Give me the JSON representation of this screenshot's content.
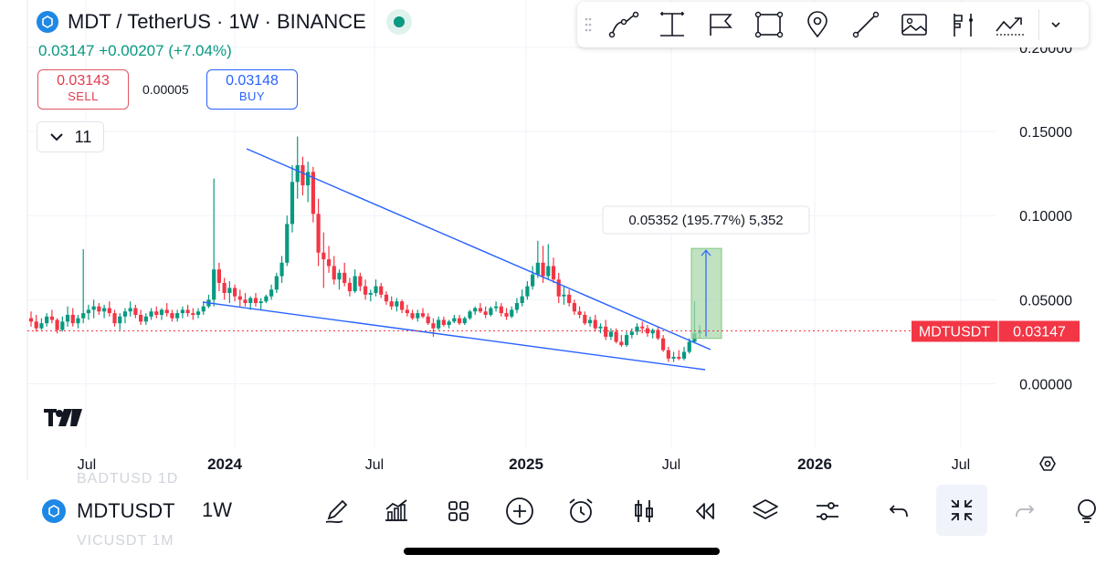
{
  "header": {
    "title": "MDT / TetherUS · 1W · BINANCE",
    "last": "0.03147",
    "change": "+0.00207 (+7.04%)"
  },
  "trade": {
    "sell_price": "0.03143",
    "sell_label": "SELL",
    "spread": "0.00005",
    "buy_price": "0.03148",
    "buy_label": "BUY"
  },
  "indicators": {
    "count": "11"
  },
  "drawing_toolbar": {
    "tools": [
      "path-icon",
      "text-tool-icon",
      "flag-icon",
      "rectangle-icon",
      "pin-icon",
      "trend-line-icon",
      "image-icon",
      "long-position-icon",
      "forecast-icon",
      "chevron-down-icon"
    ]
  },
  "price_axis": {
    "labels": [
      "0.20000",
      "0.15000",
      "0.10000",
      "0.05000",
      "0.00000"
    ],
    "current_symbol": "MDTUSDT",
    "current_price": "0.03147"
  },
  "time_axis": {
    "labels": [
      "Jul",
      "2024",
      "Jul",
      "2025",
      "Jul",
      "2026",
      "Jul"
    ]
  },
  "measure": {
    "label": "0.05352 (195.77%) 5,352"
  },
  "bottom_toolbar": {
    "symbol": "MDTUSDT",
    "interval": "1W",
    "ghost_above": "BADTUSD   1D",
    "ghost_below": "VICUSDT   1M",
    "tools": [
      "pencil-icon",
      "indicators-icon",
      "layouts-icon",
      "add-icon",
      "alarm-icon",
      "candles-icon",
      "replay-icon",
      "layers-icon",
      "settings-icon",
      "undo-icon",
      "exit-fullscreen-icon",
      "redo-icon",
      "more-icon"
    ]
  },
  "colors": {
    "up": "#089981",
    "down": "#f23645",
    "line": "#2962ff",
    "measure": "#a5d6a7"
  },
  "chart_data": {
    "type": "candlestick",
    "pair": "MDTUSDT",
    "timeframe": "1W",
    "price_range": [
      0,
      0.2
    ],
    "current_price": 0.03147,
    "trendlines": [
      {
        "name": "upper",
        "from": {
          "time": "2024-02",
          "price": 0.139
        },
        "to": {
          "time": "2025-08",
          "price": 0.02
        }
      },
      {
        "name": "lower",
        "from": {
          "time": "2023-12",
          "price": 0.048
        },
        "to": {
          "time": "2025-08",
          "price": 0.008
        }
      }
    ],
    "measure": {
      "from": 0.027,
      "to": 0.0805,
      "change": "0.05352 (195.77%) 5,352"
    },
    "candles": [
      [
        0.039,
        0.043,
        0.034,
        0.037
      ],
      [
        0.037,
        0.041,
        0.031,
        0.033
      ],
      [
        0.033,
        0.039,
        0.032,
        0.036
      ],
      [
        0.036,
        0.042,
        0.034,
        0.04
      ],
      [
        0.04,
        0.044,
        0.036,
        0.038
      ],
      [
        0.038,
        0.039,
        0.03,
        0.032
      ],
      [
        0.032,
        0.04,
        0.031,
        0.037
      ],
      [
        0.037,
        0.046,
        0.034,
        0.041
      ],
      [
        0.041,
        0.045,
        0.034,
        0.036
      ],
      [
        0.036,
        0.041,
        0.033,
        0.039
      ],
      [
        0.039,
        0.08,
        0.036,
        0.042
      ],
      [
        0.042,
        0.047,
        0.038,
        0.044
      ],
      [
        0.044,
        0.05,
        0.039,
        0.046
      ],
      [
        0.046,
        0.048,
        0.041,
        0.043
      ],
      [
        0.043,
        0.047,
        0.039,
        0.045
      ],
      [
        0.045,
        0.049,
        0.04,
        0.042
      ],
      [
        0.042,
        0.044,
        0.034,
        0.036
      ],
      [
        0.036,
        0.042,
        0.032,
        0.04
      ],
      [
        0.04,
        0.045,
        0.036,
        0.043
      ],
      [
        0.043,
        0.049,
        0.04,
        0.045
      ],
      [
        0.045,
        0.047,
        0.039,
        0.041
      ],
      [
        0.041,
        0.044,
        0.035,
        0.037
      ],
      [
        0.037,
        0.042,
        0.035,
        0.04
      ],
      [
        0.04,
        0.045,
        0.038,
        0.043
      ],
      [
        0.043,
        0.046,
        0.039,
        0.041
      ],
      [
        0.041,
        0.045,
        0.038,
        0.044
      ],
      [
        0.044,
        0.048,
        0.04,
        0.042
      ],
      [
        0.042,
        0.044,
        0.037,
        0.039
      ],
      [
        0.039,
        0.044,
        0.037,
        0.042
      ],
      [
        0.042,
        0.046,
        0.039,
        0.044
      ],
      [
        0.044,
        0.047,
        0.04,
        0.042
      ],
      [
        0.042,
        0.045,
        0.038,
        0.041
      ],
      [
        0.041,
        0.045,
        0.039,
        0.043
      ],
      [
        0.043,
        0.049,
        0.041,
        0.046
      ],
      [
        0.046,
        0.053,
        0.045,
        0.05
      ],
      [
        0.05,
        0.122,
        0.046,
        0.068
      ],
      [
        0.068,
        0.072,
        0.055,
        0.06
      ],
      [
        0.06,
        0.063,
        0.05,
        0.054
      ],
      [
        0.054,
        0.061,
        0.048,
        0.057
      ],
      [
        0.057,
        0.059,
        0.049,
        0.052
      ],
      [
        0.052,
        0.056,
        0.046,
        0.05
      ],
      [
        0.05,
        0.054,
        0.046,
        0.048
      ],
      [
        0.048,
        0.052,
        0.044,
        0.051
      ],
      [
        0.051,
        0.054,
        0.046,
        0.048
      ],
      [
        0.048,
        0.051,
        0.044,
        0.049
      ],
      [
        0.049,
        0.053,
        0.048,
        0.052
      ],
      [
        0.052,
        0.059,
        0.05,
        0.056
      ],
      [
        0.056,
        0.066,
        0.054,
        0.064
      ],
      [
        0.064,
        0.076,
        0.06,
        0.072
      ],
      [
        0.072,
        0.1,
        0.07,
        0.095
      ],
      [
        0.095,
        0.13,
        0.09,
        0.12
      ],
      [
        0.12,
        0.147,
        0.11,
        0.13
      ],
      [
        0.13,
        0.135,
        0.112,
        0.118
      ],
      [
        0.118,
        0.132,
        0.108,
        0.126
      ],
      [
        0.126,
        0.129,
        0.096,
        0.101
      ],
      [
        0.101,
        0.11,
        0.07,
        0.078
      ],
      [
        0.078,
        0.09,
        0.057,
        0.074
      ],
      [
        0.074,
        0.082,
        0.066,
        0.07
      ],
      [
        0.07,
        0.076,
        0.059,
        0.062
      ],
      [
        0.062,
        0.068,
        0.056,
        0.066
      ],
      [
        0.066,
        0.072,
        0.058,
        0.06
      ],
      [
        0.06,
        0.063,
        0.052,
        0.055
      ],
      [
        0.055,
        0.068,
        0.054,
        0.064
      ],
      [
        0.064,
        0.066,
        0.055,
        0.058
      ],
      [
        0.058,
        0.062,
        0.05,
        0.053
      ],
      [
        0.053,
        0.056,
        0.049,
        0.054
      ],
      [
        0.054,
        0.062,
        0.052,
        0.058
      ],
      [
        0.058,
        0.06,
        0.051,
        0.053
      ],
      [
        0.053,
        0.055,
        0.047,
        0.049
      ],
      [
        0.049,
        0.052,
        0.044,
        0.046
      ],
      [
        0.046,
        0.051,
        0.043,
        0.049
      ],
      [
        0.049,
        0.05,
        0.042,
        0.044
      ],
      [
        0.044,
        0.047,
        0.04,
        0.042
      ],
      [
        0.042,
        0.044,
        0.038,
        0.039
      ],
      [
        0.039,
        0.044,
        0.037,
        0.042
      ],
      [
        0.042,
        0.045,
        0.039,
        0.04
      ],
      [
        0.04,
        0.042,
        0.035,
        0.036
      ],
      [
        0.036,
        0.039,
        0.028,
        0.033
      ],
      [
        0.033,
        0.04,
        0.032,
        0.038
      ],
      [
        0.038,
        0.04,
        0.034,
        0.035
      ],
      [
        0.035,
        0.038,
        0.033,
        0.037
      ],
      [
        0.037,
        0.041,
        0.036,
        0.039
      ],
      [
        0.039,
        0.041,
        0.035,
        0.036
      ],
      [
        0.036,
        0.04,
        0.035,
        0.039
      ],
      [
        0.039,
        0.044,
        0.038,
        0.043
      ],
      [
        0.043,
        0.046,
        0.041,
        0.045
      ],
      [
        0.045,
        0.048,
        0.042,
        0.043
      ],
      [
        0.043,
        0.046,
        0.039,
        0.041
      ],
      [
        0.041,
        0.046,
        0.04,
        0.045
      ],
      [
        0.045,
        0.049,
        0.043,
        0.046
      ],
      [
        0.046,
        0.048,
        0.04,
        0.042
      ],
      [
        0.042,
        0.045,
        0.038,
        0.04
      ],
      [
        0.04,
        0.046,
        0.039,
        0.044
      ],
      [
        0.044,
        0.051,
        0.042,
        0.048
      ],
      [
        0.048,
        0.056,
        0.046,
        0.052
      ],
      [
        0.052,
        0.061,
        0.05,
        0.058
      ],
      [
        0.058,
        0.07,
        0.056,
        0.065
      ],
      [
        0.065,
        0.085,
        0.063,
        0.072
      ],
      [
        0.072,
        0.082,
        0.06,
        0.064
      ],
      [
        0.064,
        0.083,
        0.062,
        0.07
      ],
      [
        0.07,
        0.075,
        0.06,
        0.062
      ],
      [
        0.062,
        0.066,
        0.048,
        0.052
      ],
      [
        0.052,
        0.058,
        0.047,
        0.053
      ],
      [
        0.053,
        0.056,
        0.046,
        0.048
      ],
      [
        0.048,
        0.05,
        0.041,
        0.043
      ],
      [
        0.043,
        0.046,
        0.039,
        0.041
      ],
      [
        0.041,
        0.043,
        0.035,
        0.036
      ],
      [
        0.036,
        0.04,
        0.034,
        0.038
      ],
      [
        0.038,
        0.041,
        0.031,
        0.033
      ],
      [
        0.033,
        0.036,
        0.03,
        0.034
      ],
      [
        0.034,
        0.038,
        0.026,
        0.028
      ],
      [
        0.028,
        0.033,
        0.026,
        0.031
      ],
      [
        0.031,
        0.033,
        0.024,
        0.025
      ],
      [
        0.025,
        0.029,
        0.022,
        0.023
      ],
      [
        0.023,
        0.031,
        0.022,
        0.029
      ],
      [
        0.029,
        0.033,
        0.027,
        0.031
      ],
      [
        0.031,
        0.036,
        0.029,
        0.034
      ],
      [
        0.034,
        0.037,
        0.03,
        0.033
      ],
      [
        0.033,
        0.035,
        0.028,
        0.03
      ],
      [
        0.03,
        0.033,
        0.027,
        0.032
      ],
      [
        0.032,
        0.034,
        0.026,
        0.027
      ],
      [
        0.027,
        0.029,
        0.019,
        0.02
      ],
      [
        0.02,
        0.022,
        0.013,
        0.015
      ],
      [
        0.015,
        0.019,
        0.013,
        0.016
      ],
      [
        0.016,
        0.02,
        0.014,
        0.015
      ],
      [
        0.015,
        0.022,
        0.014,
        0.019
      ],
      [
        0.019,
        0.027,
        0.018,
        0.025
      ],
      [
        0.025,
        0.049,
        0.024,
        0.03
      ],
      [
        0.03,
        0.035,
        0.027,
        0.0315
      ]
    ]
  }
}
